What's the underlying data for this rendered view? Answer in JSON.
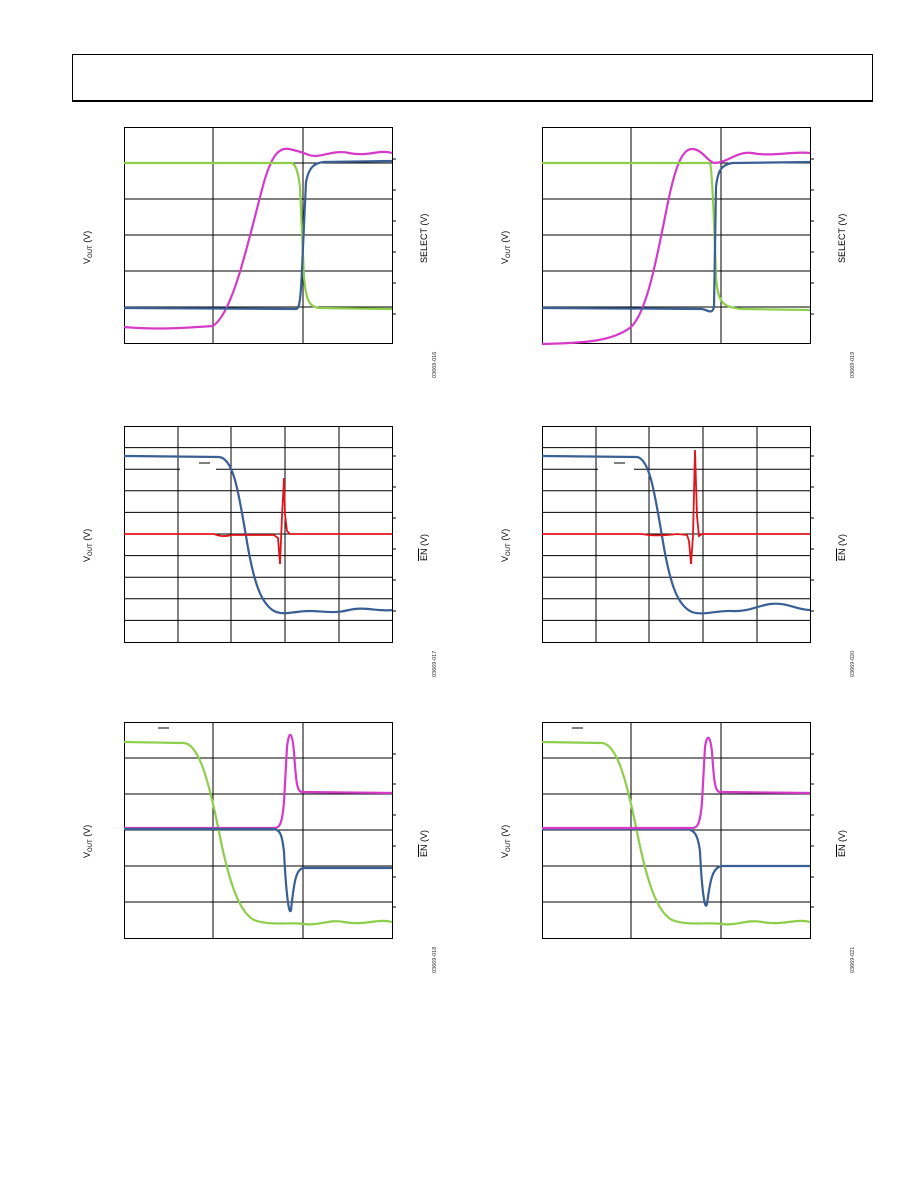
{
  "page": {
    "header_text": ""
  },
  "labels": {
    "vout_main": "V",
    "vout_sub": "OUT",
    "vout_unit": " (V)",
    "select": "SELECT (V)",
    "en_main": "EN",
    "en_unit": " (V)"
  },
  "colors": {
    "magenta": "#d63ac8",
    "green": "#8dce4a",
    "blue": "#3a5f94",
    "red": "#e0151b",
    "grid": "#000000"
  },
  "figures": [
    {
      "id": "fig-r1-left",
      "code": "03669-016",
      "right_label": "select"
    },
    {
      "id": "fig-r1-right",
      "code": "03669-019",
      "right_label": "select"
    },
    {
      "id": "fig-r2-left",
      "code": "03669-017",
      "right_label": "en"
    },
    {
      "id": "fig-r2-right",
      "code": "03669-020",
      "right_label": "en"
    },
    {
      "id": "fig-r3-left",
      "code": "03669-018",
      "right_label": "en"
    },
    {
      "id": "fig-r3-right",
      "code": "03669-021",
      "right_label": "en"
    }
  ]
}
